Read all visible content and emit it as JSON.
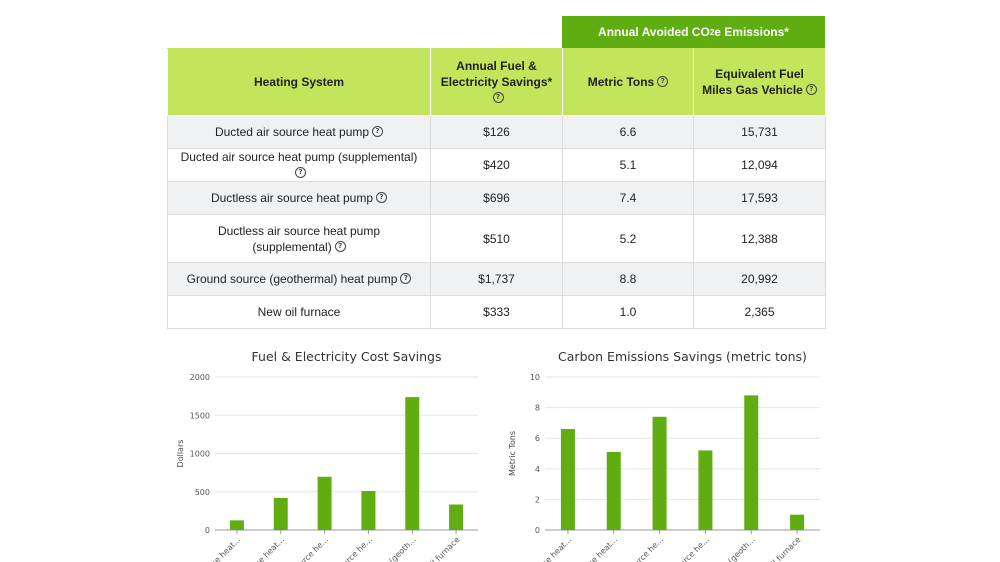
{
  "co2_header": {
    "prefix": "Annual Avoided CO",
    "sub": "2",
    "suffix": "e Emissions*"
  },
  "table": {
    "headers": {
      "system": "Heating System",
      "fuel": "Annual Fuel & Electricity Savings*",
      "tons": "Metric Tons",
      "miles_line1": "Equivalent Fuel",
      "miles_line2": "Miles Gas Vehicle"
    },
    "rows": [
      {
        "system": "Ducted air source heat pump",
        "fuel": "$126",
        "tons": "6.6",
        "miles": "15,731",
        "help": true
      },
      {
        "system": "Ducted air source heat pump (supplemental)",
        "fuel": "$420",
        "tons": "5.1",
        "miles": "12,094",
        "help": true
      },
      {
        "system": "Ductless air source heat pump",
        "fuel": "$696",
        "tons": "7.4",
        "miles": "17,593",
        "help": true
      },
      {
        "system": "Ductless air source heat pump (supplemental)",
        "fuel": "$510",
        "tons": "5.2",
        "miles": "12,388",
        "help": true
      },
      {
        "system": "Ground source (geothermal) heat pump",
        "fuel": "$1,737",
        "tons": "8.8",
        "miles": "20,992",
        "help": true
      },
      {
        "system": "New oil furnace",
        "fuel": "$333",
        "tons": "1.0",
        "miles": "2,365",
        "help": false
      }
    ]
  },
  "chart_data": [
    {
      "type": "bar",
      "title": "Fuel & Electricity Cost Savings",
      "ylabel": "Dollars",
      "xlabel": "",
      "categories": [
        "...rce heat...",
        "...urce heat...",
        "...urce he...",
        "...source he...",
        "...(geoth...",
        "...il furnace"
      ],
      "values": [
        126,
        420,
        696,
        510,
        1737,
        333
      ],
      "ylim": [
        0,
        2000
      ],
      "yticks": [
        0,
        500,
        1000,
        1500,
        2000
      ],
      "grid": true,
      "color": "#5fad10"
    },
    {
      "type": "bar",
      "title": "Carbon Emissions Savings (metric tons)",
      "ylabel": "Metric Tons",
      "xlabel": "",
      "categories": [
        "...rce heat...",
        "...rce heat...",
        "...urce he...",
        "...source he...",
        "...(geoth...",
        "...il furnace"
      ],
      "values": [
        6.6,
        5.1,
        7.4,
        5.2,
        8.8,
        1.0
      ],
      "ylim": [
        0,
        10
      ],
      "yticks": [
        0,
        2,
        4,
        6,
        8,
        10
      ],
      "grid": true,
      "color": "#5fad10"
    }
  ]
}
